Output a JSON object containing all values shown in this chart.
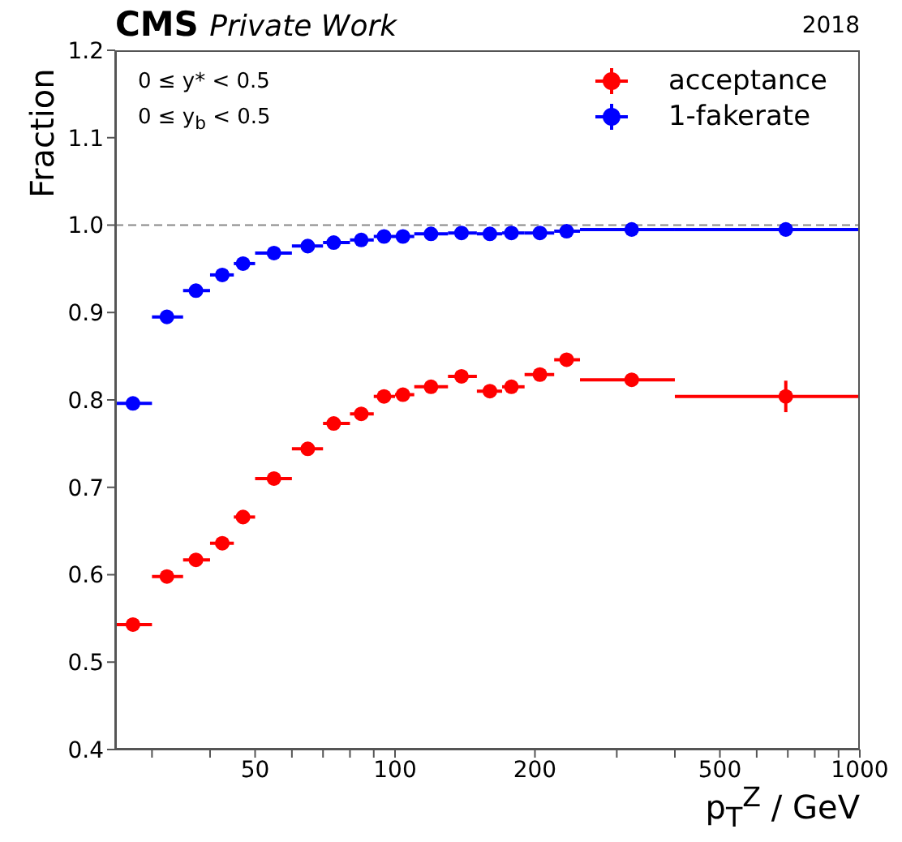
{
  "chart_data": {
    "type": "scatter",
    "title": "CMS",
    "subtitle": "Private Work",
    "xlabel": "p$_{T}$$^{Z}$ /  GeV",
    "ylabel": "Fraction",
    "annotations": [
      "2018",
      "0 ≤ y* < 0.5",
      "0 ≤ y$_{b}$ < 0.5"
    ],
    "log": "x",
    "xlim": [
      25,
      1000
    ],
    "xticks": [
      {
        "value": 30,
        "label": null
      },
      {
        "value": 40,
        "label": null
      },
      50,
      {
        "value": 60,
        "label": null
      },
      {
        "value": 70,
        "label": null
      },
      {
        "value": 80,
        "label": null
      },
      {
        "value": 90,
        "label": null
      },
      100,
      200,
      {
        "value": 300,
        "label": null
      },
      {
        "value": 400,
        "label": null
      },
      500,
      {
        "value": 600,
        "label": null
      },
      {
        "value": 700,
        "label": null
      },
      {
        "value": 800,
        "label": null
      },
      {
        "value": 900,
        "label": null
      },
      1000
    ],
    "ylim": [
      0.4,
      1.2
    ],
    "yticks": [
      {
        "value": 0.4,
        "label": "0.4"
      },
      {
        "value": 0.5,
        "label": "0.5"
      },
      {
        "value": 0.6,
        "label": "0.6"
      },
      {
        "value": 0.7,
        "label": "0.7"
      },
      {
        "value": 0.8,
        "label": "0.8"
      },
      {
        "value": 0.9,
        "label": "0.9"
      },
      {
        "value": 1,
        "label": "1.0"
      },
      {
        "value": 1.1,
        "label": "1.1"
      },
      {
        "value": 1.2,
        "label": "1.2"
      }
    ],
    "x": [
      27.3,
      32.3,
      37.3,
      42.5,
      47.1,
      54.9,
      64.9,
      73.8,
      84.6,
      94.7,
      104,
      119.5,
      139,
      160,
      178,
      205,
      234,
      323,
      693
    ],
    "series": [
      {
        "name": "acceptance",
        "color": "#ff0000",
        "values": [
          0.543,
          0.598,
          0.617,
          0.636,
          0.666,
          0.71,
          0.744,
          0.773,
          0.784,
          0.804,
          0.806,
          0.815,
          0.827,
          0.81,
          0.815,
          0.829,
          0.846,
          0.823,
          0.804
        ],
        "errors": [
          null,
          null,
          null,
          null,
          null,
          null,
          null,
          null,
          null,
          null,
          null,
          null,
          null,
          null,
          null,
          null,
          null,
          null,
          0.018
        ],
        "xerrors": [
          [
            25,
            30
          ],
          [
            30,
            35
          ],
          [
            35,
            40
          ],
          [
            40,
            45
          ],
          [
            45,
            50
          ],
          [
            50,
            60
          ],
          [
            60,
            70
          ],
          [
            70,
            80
          ],
          [
            80,
            90
          ],
          [
            90,
            100
          ],
          [
            100,
            110
          ],
          [
            110,
            130
          ],
          [
            130,
            150
          ],
          [
            150,
            170
          ],
          [
            170,
            190
          ],
          [
            190,
            220
          ],
          [
            220,
            250
          ],
          [
            250,
            400
          ],
          [
            400,
            1000
          ]
        ]
      },
      {
        "name": "1-fakerate",
        "color": "#0000ff",
        "values": [
          0.796,
          0.895,
          0.925,
          0.943,
          0.956,
          0.968,
          0.976,
          0.98,
          0.983,
          0.987,
          0.987,
          0.99,
          0.991,
          0.99,
          0.991,
          0.991,
          0.993,
          0.995,
          0.995
        ],
        "xerrors": [
          [
            25,
            30
          ],
          [
            30,
            35
          ],
          [
            35,
            40
          ],
          [
            40,
            45
          ],
          [
            45,
            50
          ],
          [
            50,
            60
          ],
          [
            60,
            70
          ],
          [
            70,
            80
          ],
          [
            80,
            90
          ],
          [
            90,
            100
          ],
          [
            100,
            110
          ],
          [
            110,
            130
          ],
          [
            130,
            150
          ],
          [
            150,
            170
          ],
          [
            170,
            190
          ],
          [
            190,
            220
          ],
          [
            220,
            250
          ],
          [
            250,
            400
          ],
          [
            400,
            1000
          ]
        ]
      }
    ],
    "ref_lines": [
      {
        "axis": "y",
        "value": 1,
        "color": "#888888",
        "line_style": "dashed"
      }
    ],
    "marker": "circle",
    "legend": "top right",
    "grid": false
  }
}
